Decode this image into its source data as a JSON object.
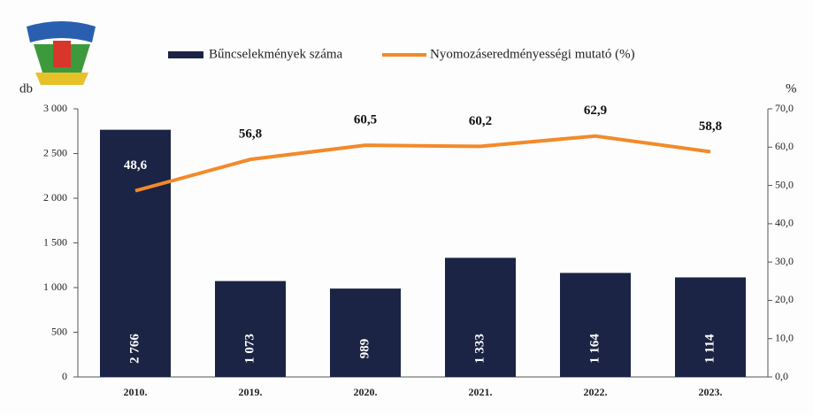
{
  "chart_data": {
    "type": "bar",
    "categories": [
      "2010.",
      "2019.",
      "2020.",
      "2021.",
      "2022.",
      "2023."
    ],
    "series": [
      {
        "name": "Bűncselekmények száma",
        "type": "bar",
        "color": "#1b2444",
        "values": [
          2766,
          1073,
          989,
          1333,
          1164,
          1114
        ],
        "value_labels": [
          "2 766",
          "1 073",
          "989",
          "1 333",
          "1 164",
          "1 114"
        ]
      },
      {
        "name": "Nyomozáseredményességi mutató (%)",
        "type": "line",
        "axis": "y2",
        "color": "#f28a2a",
        "values": [
          48.6,
          56.8,
          60.5,
          60.2,
          62.9,
          58.8
        ],
        "value_labels": [
          "48,6",
          "56,8",
          "60,5",
          "60,2",
          "62,9",
          "58,8"
        ]
      }
    ],
    "y_label": "db",
    "y2_label": "%",
    "ylim": [
      0,
      3000
    ],
    "yticks": [
      0,
      500,
      {
        "value": 1000,
        "label": "1 000"
      },
      {
        "value": 1500,
        "label": "1 500"
      },
      {
        "value": 2000,
        "label": "2 000"
      },
      {
        "value": 2500,
        "label": "2 500"
      },
      {
        "value": 3000,
        "label": "3 000"
      }
    ],
    "y2lim": [
      0,
      70
    ],
    "y2ticks": [
      {
        "value": 0,
        "label": "0,0"
      },
      {
        "value": 10,
        "label": "10,0"
      },
      {
        "value": 20,
        "label": "20,0"
      },
      {
        "value": 30,
        "label": "30,0"
      },
      {
        "value": 40,
        "label": "40,0"
      },
      {
        "value": 50,
        "label": "50,0"
      },
      {
        "value": 60,
        "label": "60,0"
      },
      {
        "value": 70,
        "label": "70,0"
      }
    ]
  }
}
